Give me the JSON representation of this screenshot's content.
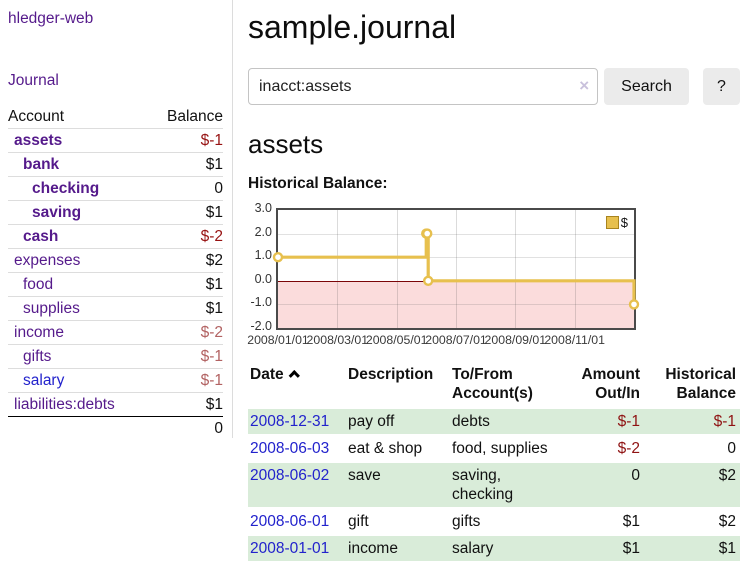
{
  "colors": {
    "link_purple": "#551a8b",
    "link_blue": "#2222cc",
    "negative_dark": "#971212",
    "negative_muted": "#b26262",
    "row_green": "#d9ecd9",
    "chart_line_gold": "#e7c04e",
    "chart_negative_fill": "#fbdcdc",
    "chart_zero_line": "#7b0508",
    "button_bg": "#ebebeb"
  },
  "sidebar": {
    "app_title": "hledger-web",
    "nav_journal": "Journal",
    "accounts": {
      "col_account": "Account",
      "col_balance": "Balance",
      "rows": [
        {
          "name": "assets",
          "depth": 0,
          "balance": "$-1",
          "bold": true,
          "neg": "dark"
        },
        {
          "name": "bank",
          "depth": 1,
          "balance": "$1",
          "bold": true,
          "neg": null
        },
        {
          "name": "checking",
          "depth": 2,
          "balance": "0",
          "bold": true,
          "neg": null
        },
        {
          "name": "saving",
          "depth": 2,
          "balance": "$1",
          "bold": true,
          "neg": null
        },
        {
          "name": "cash",
          "depth": 1,
          "balance": "$-2",
          "bold": true,
          "neg": "dark"
        },
        {
          "name": "expenses",
          "depth": 0,
          "balance": "$2",
          "bold": false,
          "neg": null
        },
        {
          "name": "food",
          "depth": 1,
          "balance": "$1",
          "bold": false,
          "neg": null
        },
        {
          "name": "supplies",
          "depth": 1,
          "balance": "$1",
          "bold": false,
          "neg": null
        },
        {
          "name": "income",
          "depth": 0,
          "balance": "$-2",
          "bold": false,
          "neg": "muted"
        },
        {
          "name": "gifts",
          "depth": 1,
          "balance": "$-1",
          "bold": false,
          "neg": "muted"
        },
        {
          "name": "salary",
          "depth": 1,
          "balance": "$-1",
          "bold": false,
          "neg": "muted",
          "blue": true
        },
        {
          "name": "liabilities:debts",
          "depth": 0,
          "balance": "$1",
          "bold": false,
          "neg": null
        }
      ],
      "total": "0"
    }
  },
  "main": {
    "title": "sample.journal",
    "search": {
      "value": "inacct:assets",
      "clear_icon": "×",
      "search_button": "Search",
      "help_button": "?"
    },
    "account_heading": "assets",
    "chart_heading": "Historical Balance:"
  },
  "chart_data": {
    "type": "line",
    "step": true,
    "title": "Historical Balance:",
    "legend": [
      "$"
    ],
    "legend_position": "top-right",
    "ylim": [
      -2,
      3
    ],
    "y_ticks": [
      "3.0",
      "2.0",
      "1.0",
      "0.0",
      "-1.0",
      "-2.0"
    ],
    "x_ticks": [
      "2008/01/01",
      "2008/03/01",
      "2008/05/01",
      "2008/07/01",
      "2008/09/01",
      "2008/11/01"
    ],
    "x_range": [
      "2008/01/01",
      "2008/12/31"
    ],
    "grid": true,
    "negative_region_shaded": true,
    "series": [
      {
        "name": "$",
        "points": [
          {
            "date": "2008/01/01",
            "value": 1
          },
          {
            "date": "2008/06/01",
            "value": 2
          },
          {
            "date": "2008/06/02",
            "value": 2
          },
          {
            "date": "2008/06/03",
            "value": 0
          },
          {
            "date": "2008/12/31",
            "value": -1
          }
        ]
      }
    ]
  },
  "register": {
    "headers": {
      "date": "Date",
      "description": "Description",
      "accounts": "To/From Account(s)",
      "amount": "Amount Out/In",
      "balance": "Historical Balance"
    },
    "sort": {
      "column": "date",
      "direction": "ascending"
    },
    "rows": [
      {
        "date": "2008-12-31",
        "description": "pay off",
        "accounts": "debts",
        "amount": "$-1",
        "balance": "$-1",
        "amount_neg": true,
        "balance_neg": true,
        "shade": true
      },
      {
        "date": "2008-06-03",
        "description": "eat & shop",
        "accounts": "food, supplies",
        "amount": "$-2",
        "balance": "0",
        "amount_neg": true,
        "balance_neg": false,
        "shade": false
      },
      {
        "date": "2008-06-02",
        "description": "save",
        "accounts": "saving, checking",
        "amount": "0",
        "balance": "$2",
        "amount_neg": false,
        "balance_neg": false,
        "shade": true
      },
      {
        "date": "2008-06-01",
        "description": "gift",
        "accounts": "gifts",
        "amount": "$1",
        "balance": "$2",
        "amount_neg": false,
        "balance_neg": false,
        "shade": false
      },
      {
        "date": "2008-01-01",
        "description": "income",
        "accounts": "salary",
        "amount": "$1",
        "balance": "$1",
        "amount_neg": false,
        "balance_neg": false,
        "shade": true
      }
    ]
  }
}
